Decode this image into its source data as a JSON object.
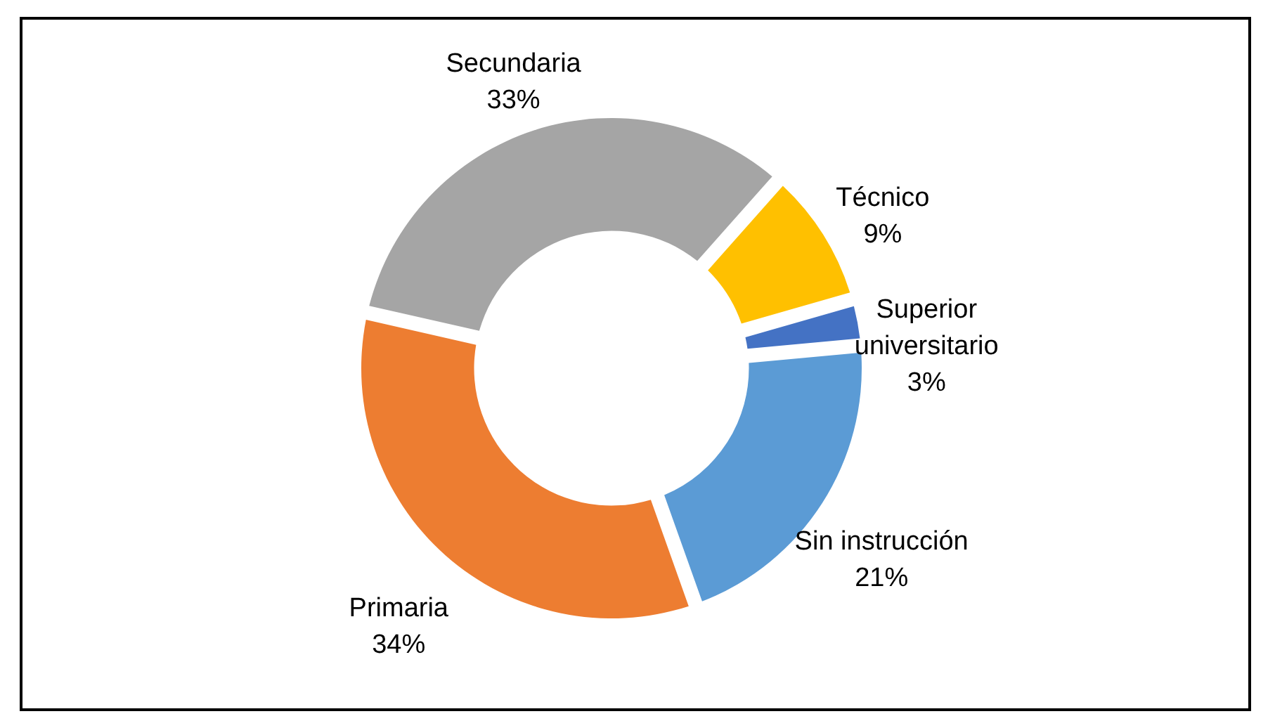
{
  "chart_data": {
    "type": "donut",
    "categories": [
      "Sin instrucción",
      "Primaria",
      "Secundaria",
      "Técnico",
      "Superior universitario"
    ],
    "values": [
      21,
      34,
      33,
      9,
      3
    ],
    "value_labels": [
      "21%",
      "34%",
      "33%",
      "9%",
      "3%"
    ],
    "colors": [
      "#5b9bd5",
      "#ed7d31",
      "#a5a5a5",
      "#ffc000",
      "#4472c4"
    ],
    "legend": false
  }
}
